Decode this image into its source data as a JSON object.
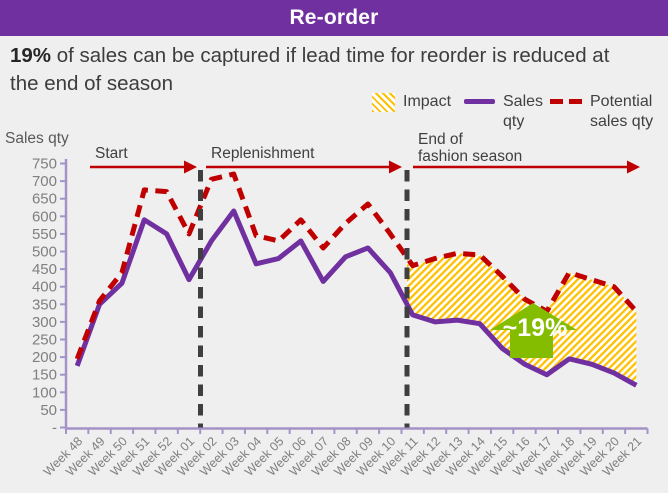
{
  "header": {
    "title": "Re-order"
  },
  "subtitle": {
    "highlight": "19%",
    "text": " of sales can be captured if lead time for reorder is reduced at the end of season"
  },
  "legend": {
    "impact": "Impact",
    "sales": "Sales qty",
    "potential": "Potential sales qty"
  },
  "colors": {
    "header_bg": "#7030A0",
    "sales_line": "#7030A0",
    "potential_line": "#C00000",
    "impact_hatch": "#FFC000",
    "phase_arrow": "#C00000",
    "divider": "#3f3f3f",
    "axis": "#A393C7",
    "tick_text": "#7f7f7f",
    "annotation_green": "#84BD00",
    "background": "#EFEFEF"
  },
  "chart_data": {
    "type": "line",
    "title": "",
    "xlabel": "",
    "ylabel": "Sales qty",
    "ylim": [
      0,
      750
    ],
    "ytick_step": 50,
    "zero_tick_label": "-",
    "grid": false,
    "legend_position": "top-right",
    "categories": [
      "Week 48",
      "Week 49",
      "Week 50",
      "Week 51",
      "Week 52",
      "Week 01",
      "Week 02",
      "Week 03",
      "Week 04",
      "Week 05",
      "Week 06",
      "Week 07",
      "Week 08",
      "Week 09",
      "Week 10",
      "Week 11",
      "Week 12",
      "Week 13",
      "Week 14",
      "Week 15",
      "Week 16",
      "Week 17",
      "Week 18",
      "Week 19",
      "Week 20",
      "Week 21"
    ],
    "series": [
      {
        "name": "Sales qty",
        "style": "solid",
        "color": "#7030A0",
        "values": [
          175,
          350,
          410,
          590,
          550,
          420,
          530,
          615,
          465,
          480,
          530,
          415,
          485,
          510,
          440,
          320,
          300,
          305,
          295,
          225,
          180,
          150,
          195,
          180,
          155,
          120
        ]
      },
      {
        "name": "Potential sales qty",
        "style": "dashed",
        "color": "#C00000",
        "values": [
          195,
          360,
          440,
          675,
          670,
          550,
          705,
          720,
          545,
          530,
          590,
          510,
          580,
          635,
          550,
          460,
          480,
          495,
          490,
          430,
          365,
          330,
          440,
          420,
          400,
          330
        ]
      }
    ],
    "impact_area": {
      "label": "Impact",
      "between": [
        "Sales qty",
        "Potential sales qty"
      ],
      "from_category": "Week 11",
      "to_category": "Week 21",
      "fill": "gold-diagonal-hatch"
    },
    "phases": [
      {
        "label": [
          "Start"
        ],
        "from_category": "Week 48",
        "to_category": "Week 01"
      },
      {
        "label": [
          "Replenishment"
        ],
        "from_category": "Week 02",
        "to_category": "Week 10"
      },
      {
        "label": [
          "End of",
          "fashion season"
        ],
        "from_category": "Week 11",
        "to_category": "Week 21"
      }
    ],
    "annotation": {
      "text": "~19%",
      "shape": "block-up-arrow",
      "color": "#84BD00",
      "near_category": "Week 16"
    }
  }
}
